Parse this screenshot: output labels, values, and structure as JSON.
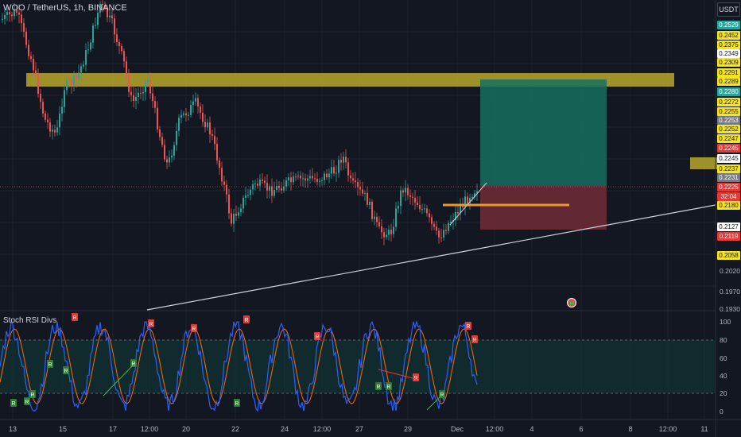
{
  "title": "WOO / TetherUS, 1h, BINANCE",
  "indicator_label": "Stoch RSI Divs",
  "currency_button": "USDT",
  "icons": {
    "alert_flag": "flag-icon"
  },
  "price_axis_labels": [
    "0.2020",
    "0.1970",
    "0.1930"
  ],
  "price_tags": [
    {
      "text": "0.2529",
      "bg": "#26a69a",
      "fg": "#ffffff"
    },
    {
      "text": "0.2452",
      "bg": "#f5e41e",
      "fg": "#131722"
    },
    {
      "text": "0.2375",
      "bg": "#f5e41e",
      "fg": "#131722"
    },
    {
      "text": "0.2349",
      "bg": "#ffffff",
      "fg": "#131722"
    },
    {
      "text": "0.2309",
      "bg": "#f5e41e",
      "fg": "#131722"
    },
    {
      "text": "0.2291",
      "bg": "#f5e41e",
      "fg": "#131722"
    },
    {
      "text": "0.2289",
      "bg": "#f5e41e",
      "fg": "#131722"
    },
    {
      "text": "0.2280",
      "bg": "#26a69a",
      "fg": "#ffffff"
    },
    {
      "text": "0.2272",
      "bg": "#f5e41e",
      "fg": "#131722"
    },
    {
      "text": "0.2255",
      "bg": "#f5e41e",
      "fg": "#131722"
    },
    {
      "text": "0.2253",
      "bg": "#787b86",
      "fg": "#ffffff"
    },
    {
      "text": "0.2252",
      "bg": "#f5e41e",
      "fg": "#131722"
    },
    {
      "text": "0.2247",
      "bg": "#f5e41e",
      "fg": "#131722"
    },
    {
      "text": "0.2245",
      "bg": "#e53935",
      "fg": "#ffffff"
    },
    {
      "text": "0.2245",
      "bg": "#ffffff",
      "fg": "#131722"
    },
    {
      "text": "0.2237",
      "bg": "#f5e41e",
      "fg": "#131722"
    },
    {
      "text": "0.2231",
      "bg": "#787b86",
      "fg": "#ffffff"
    },
    {
      "text": "0.2225",
      "bg": "#e53935",
      "fg": "#ffffff"
    },
    {
      "text": "32:04",
      "bg": "#e53935",
      "fg": "#ffffff"
    },
    {
      "text": "0.2180",
      "bg": "#f5e41e",
      "fg": "#131722"
    },
    {
      "text": "0.2127",
      "bg": "#ffffff",
      "fg": "#131722"
    },
    {
      "text": "0.2119",
      "bg": "#e53935",
      "fg": "#ffffff"
    },
    {
      "text": "0.2058",
      "bg": "#f5e41e",
      "fg": "#131722"
    }
  ],
  "indicator_axis_labels": [
    "100",
    "80",
    "60",
    "40",
    "20",
    "0"
  ],
  "time_labels": [
    "13",
    "15",
    "17",
    "12:00",
    "20",
    "22",
    "24",
    "12:00",
    "27",
    "29",
    "Dec",
    "12:00",
    "4",
    "6",
    "8",
    "12:00",
    "11"
  ],
  "colors": {
    "up": "#26a69a",
    "down": "#ef5350",
    "resistance_zone": "#b8a72a",
    "profit_zone": "#166f5f",
    "loss_zone": "#6b2a35",
    "stoch_k": "#2962ff",
    "stoch_d": "#ff6d00",
    "band": "#0e3a36"
  },
  "chart_data": {
    "type": "candlestick",
    "title": "WOO / TetherUS, 1h, BINANCE",
    "subplot": {
      "name": "Stoch RSI Divs",
      "ylim": [
        0,
        100
      ],
      "band": [
        20,
        80
      ]
    },
    "x_ticks": [
      "13",
      "15",
      "17",
      "12:00",
      "20",
      "22",
      "24",
      "12:00",
      "27",
      "29",
      "Dec",
      "12:00",
      "4",
      "6",
      "8",
      "12:00",
      "11"
    ],
    "y_ticks": [
      "0.2529",
      "0.2452",
      "0.2375",
      "0.2349",
      "0.2309",
      "0.2291",
      "0.2289",
      "0.2280",
      "0.2272",
      "0.2255",
      "0.2253",
      "0.2252",
      "0.2247",
      "0.2245",
      "0.2245",
      "0.2237",
      "0.2231",
      "0.2225",
      "0.2180",
      "0.2127",
      "0.2119",
      "0.2058",
      "0.2020",
      "0.1970",
      "0.1930"
    ]
  }
}
